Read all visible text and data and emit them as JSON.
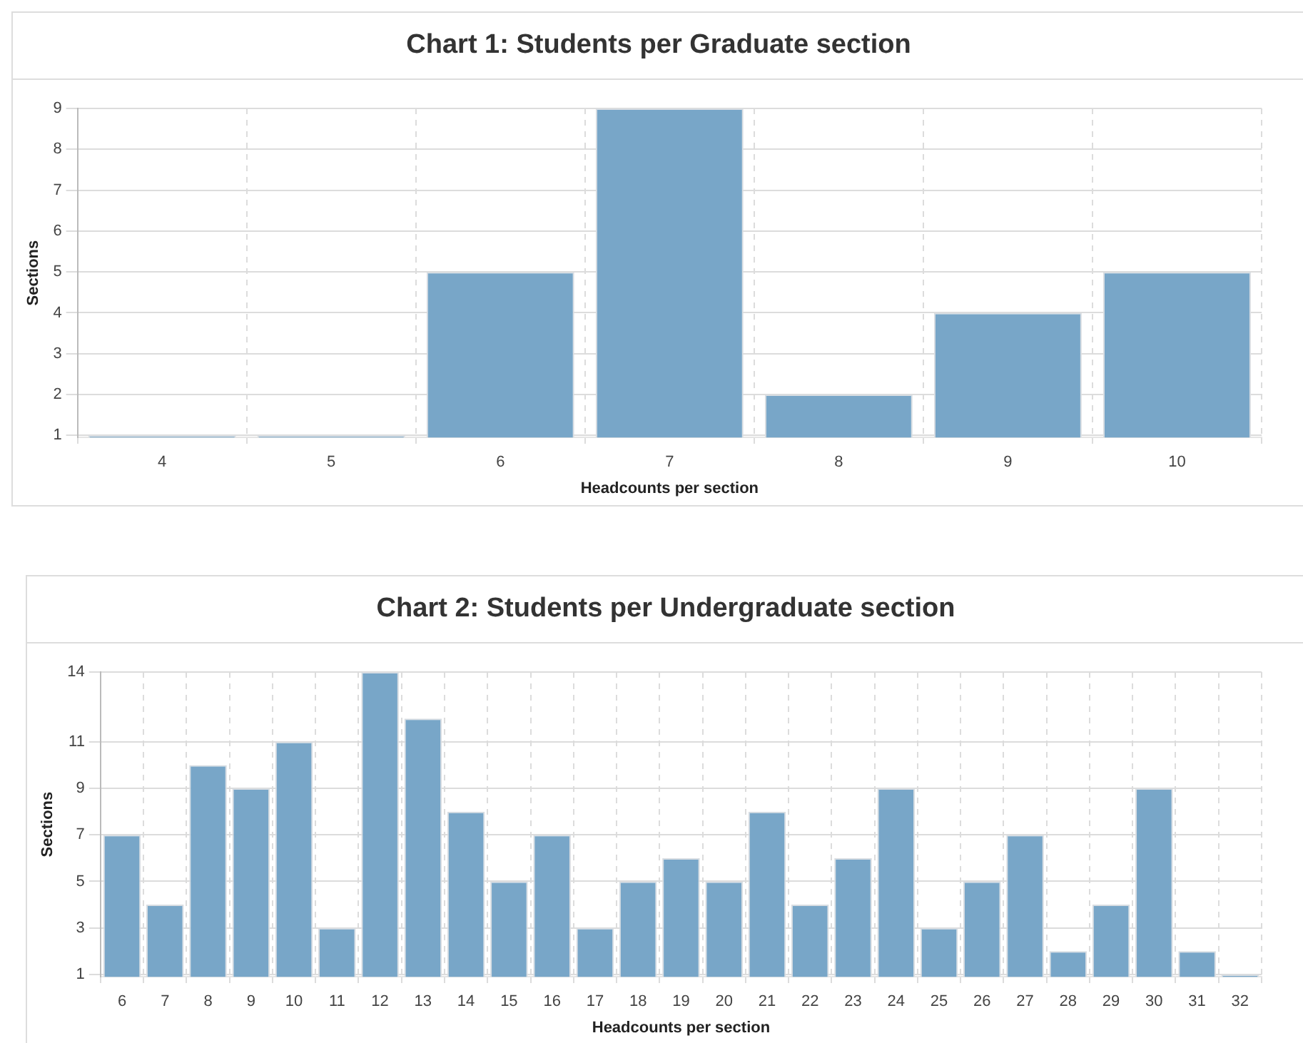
{
  "chart_data": [
    {
      "type": "bar",
      "title": "Chart 1: Students per Graduate section",
      "xlabel": "Headcounts per section",
      "ylabel": "Sections",
      "categories": [
        "4",
        "5",
        "6",
        "7",
        "8",
        "9",
        "10"
      ],
      "values": [
        1,
        1,
        5,
        9,
        2,
        4,
        5
      ],
      "color": "#78a6c8",
      "ylim": [
        0.95,
        9
      ],
      "yticks": [
        1,
        2,
        3,
        4,
        5,
        6,
        7,
        8,
        9
      ],
      "grid": true
    },
    {
      "type": "bar",
      "title": "Chart 2: Students per Undergraduate section",
      "xlabel": "Headcounts per section",
      "ylabel": "Sections",
      "categories": [
        "6",
        "7",
        "8",
        "9",
        "10",
        "11",
        "12",
        "13",
        "14",
        "15",
        "16",
        "17",
        "18",
        "19",
        "20",
        "21",
        "22",
        "23",
        "24",
        "25",
        "26",
        "27",
        "28",
        "29",
        "30",
        "31",
        "32"
      ],
      "values": [
        7,
        4,
        10,
        9,
        11,
        3,
        14,
        12,
        8,
        5,
        7,
        3,
        5,
        6,
        5,
        8,
        4,
        6,
        9,
        3,
        5,
        7,
        2,
        4,
        9,
        2,
        1
      ],
      "color": "#78a6c8",
      "ylim": [
        0.9,
        14
      ],
      "yticks": [
        1,
        3,
        5,
        7,
        9,
        11,
        14
      ],
      "grid": true
    }
  ]
}
